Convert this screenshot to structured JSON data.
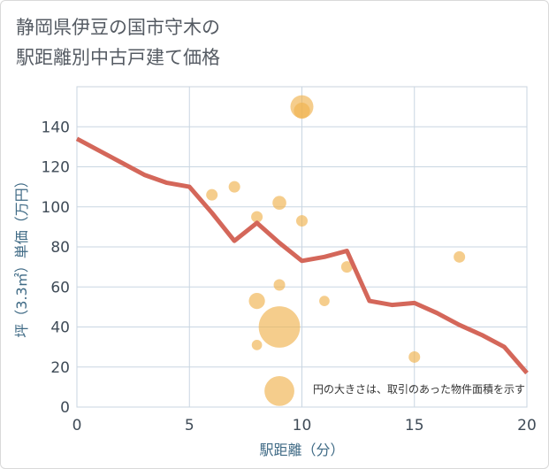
{
  "title_line1": "静岡県伊豆の国市守木の",
  "title_line2": "駅距離別中古戸建て価格",
  "chart_data": {
    "type": "scatter",
    "title": "静岡県伊豆の国市守木の駅距離別中古戸建て価格",
    "xlabel": "駅距離（分）",
    "ylabel": "坪（3.3㎡）単価（万円）",
    "xlim": [
      0,
      20
    ],
    "ylim": [
      0,
      160
    ],
    "xticks": [
      0,
      5,
      10,
      15,
      20
    ],
    "yticks": [
      0,
      20,
      40,
      60,
      80,
      100,
      120,
      140
    ],
    "grid": true,
    "note": "円の大きさは、取引のあった物件面積を示す",
    "bubble_color": "#f0b24e",
    "line_color": "#d4675a",
    "points": [
      {
        "x": 6,
        "y": 106,
        "size": 1
      },
      {
        "x": 7,
        "y": 110,
        "size": 1
      },
      {
        "x": 8,
        "y": 95,
        "size": 1
      },
      {
        "x": 8,
        "y": 53,
        "size": 1.4
      },
      {
        "x": 8,
        "y": 31,
        "size": 0.9
      },
      {
        "x": 9,
        "y": 102,
        "size": 1.2
      },
      {
        "x": 9,
        "y": 61,
        "size": 1
      },
      {
        "x": 9,
        "y": 40,
        "size": 3.6
      },
      {
        "x": 9,
        "y": 8,
        "size": 2.6
      },
      {
        "x": 10,
        "y": 150,
        "size": 2
      },
      {
        "x": 10,
        "y": 148,
        "size": 1.4
      },
      {
        "x": 10,
        "y": 93,
        "size": 1
      },
      {
        "x": 11,
        "y": 53,
        "size": 0.9
      },
      {
        "x": 12,
        "y": 70,
        "size": 1
      },
      {
        "x": 15,
        "y": 25,
        "size": 1
      },
      {
        "x": 17,
        "y": 75,
        "size": 1
      }
    ],
    "trend": {
      "x": [
        0,
        1,
        2,
        3,
        4,
        5,
        6,
        7,
        8,
        9,
        10,
        11,
        12,
        13,
        14,
        15,
        16,
        17,
        18,
        19,
        20
      ],
      "y": [
        134,
        128,
        122,
        116,
        112,
        110,
        97,
        83,
        92,
        82,
        73,
        75,
        78,
        53,
        51,
        52,
        47,
        41,
        36,
        30,
        17
      ]
    }
  }
}
